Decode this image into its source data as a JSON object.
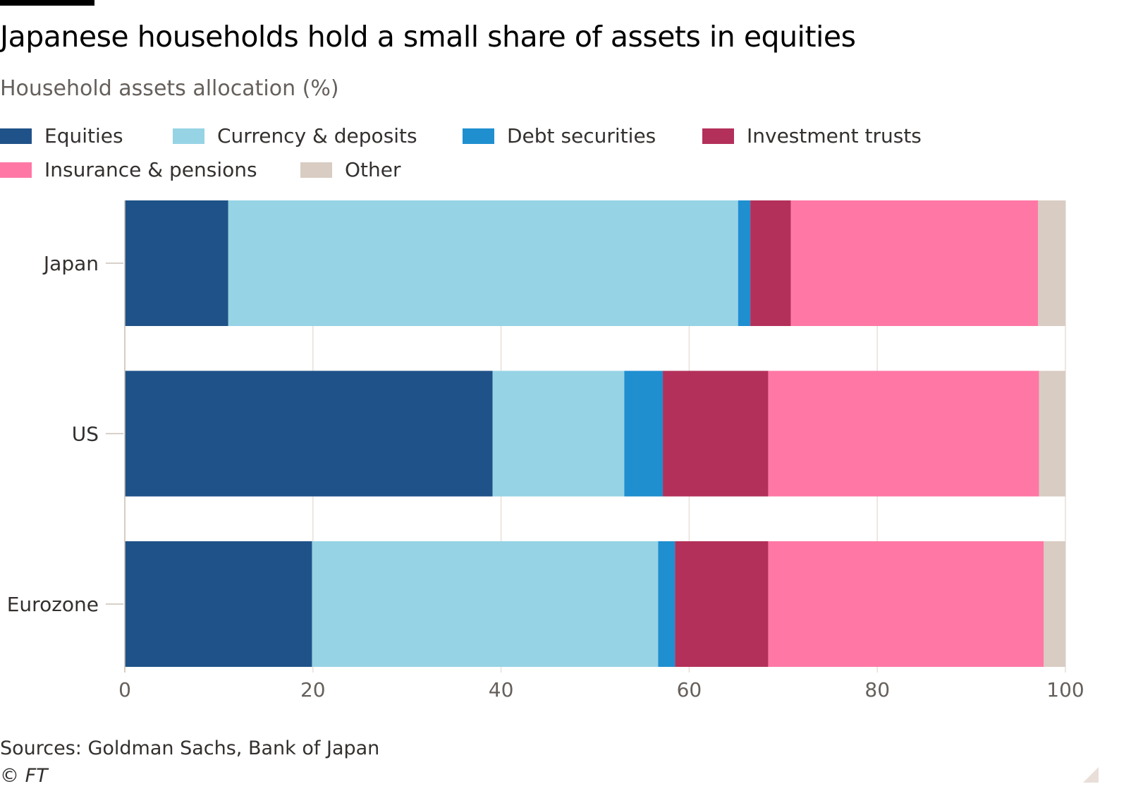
{
  "title": "Japanese households hold a small share of assets in equities",
  "subtitle": "Household assets allocation (%)",
  "source": "Sources: Goldman Sachs, Bank of Japan",
  "copyright": "© FT",
  "chart_data": {
    "type": "bar",
    "orientation": "horizontal",
    "stacked": true,
    "categories": [
      "Japan",
      "US",
      "Eurozone"
    ],
    "series": [
      {
        "name": "Equities",
        "color": "#1f5288",
        "values": [
          11.0,
          39.1,
          19.9
        ]
      },
      {
        "name": "Currency & deposits",
        "color": "#96d3e5",
        "values": [
          54.2,
          14.0,
          36.8
        ]
      },
      {
        "name": "Debt securities",
        "color": "#1f8fd0",
        "values": [
          1.3,
          4.1,
          1.8
        ]
      },
      {
        "name": "Investment trusts",
        "color": "#b3305a",
        "values": [
          4.3,
          11.2,
          9.9
        ]
      },
      {
        "name": "Insurance & pensions",
        "color": "#ff78a5",
        "values": [
          26.3,
          28.8,
          29.3
        ]
      },
      {
        "name": "Other",
        "color": "#d9ccc3",
        "values": [
          2.9,
          2.8,
          2.3
        ]
      }
    ],
    "xlim": [
      0,
      100
    ],
    "xticks": [
      "0",
      "20",
      "40",
      "60",
      "80",
      "100"
    ],
    "grid": true,
    "legend_placement": "top"
  }
}
